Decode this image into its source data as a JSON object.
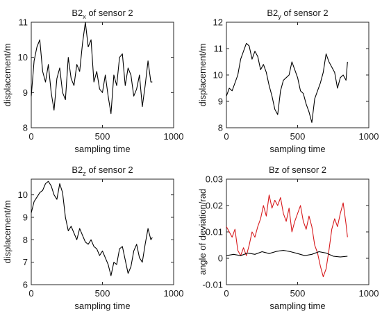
{
  "colors": {
    "black_series": "#000000",
    "red_series": "#d7191c",
    "axes": "#262626"
  },
  "chart_data": [
    {
      "type": "line",
      "title": "B2",
      "title_subscript": "x",
      "title_suffix": " of sensor 2",
      "xlabel": "sampling time",
      "ylabel": "displacement/m",
      "xlim": [
        0,
        1000
      ],
      "ylim": [
        8,
        11
      ],
      "xticks": [
        0,
        500,
        1000
      ],
      "yticks": [
        8,
        9,
        10,
        11
      ],
      "grid": false,
      "series": [
        {
          "color": "#000000",
          "x": [
            0,
            20,
            40,
            60,
            80,
            100,
            120,
            140,
            160,
            180,
            200,
            220,
            240,
            260,
            280,
            300,
            320,
            340,
            360,
            380,
            400,
            420,
            440,
            460,
            480,
            500,
            520,
            540,
            560,
            580,
            600,
            620,
            640,
            660,
            680,
            700,
            720,
            740,
            760,
            780,
            800,
            820,
            840,
            850
          ],
          "y": [
            8.9,
            9.9,
            10.3,
            10.5,
            9.6,
            9.3,
            9.8,
            9.0,
            8.5,
            9.4,
            9.7,
            9.0,
            8.8,
            10.0,
            9.4,
            9.2,
            9.8,
            9.6,
            10.4,
            11.0,
            10.3,
            10.5,
            9.3,
            9.6,
            9.1,
            9.0,
            9.5,
            8.9,
            8.4,
            9.5,
            9.2,
            10.0,
            10.1,
            9.2,
            9.7,
            9.5,
            8.9,
            9.1,
            9.5,
            8.6,
            9.2,
            9.9,
            9.3,
            9.3
          ]
        }
      ]
    },
    {
      "type": "line",
      "title": "B2",
      "title_subscript": "y",
      "title_suffix": " of sensor 2",
      "xlabel": "sampling time",
      "ylabel": "displacement/m",
      "xlim": [
        0,
        1000
      ],
      "ylim": [
        8,
        12
      ],
      "xticks": [
        0,
        500,
        1000
      ],
      "yticks": [
        8,
        9,
        10,
        11,
        12
      ],
      "grid": false,
      "series": [
        {
          "color": "#000000",
          "x": [
            0,
            20,
            40,
            60,
            80,
            100,
            120,
            140,
            160,
            180,
            200,
            220,
            240,
            260,
            280,
            300,
            320,
            340,
            360,
            380,
            400,
            420,
            440,
            460,
            480,
            500,
            520,
            540,
            560,
            580,
            600,
            620,
            640,
            660,
            680,
            700,
            720,
            740,
            760,
            780,
            800,
            820,
            840,
            850
          ],
          "y": [
            9.2,
            9.5,
            9.4,
            9.7,
            10.0,
            10.6,
            10.9,
            11.2,
            11.1,
            10.6,
            10.9,
            10.7,
            10.2,
            10.4,
            10.1,
            9.6,
            9.2,
            8.7,
            8.5,
            9.4,
            9.8,
            9.9,
            10.0,
            10.5,
            10.2,
            9.9,
            9.4,
            9.3,
            8.9,
            8.6,
            8.2,
            9.1,
            9.4,
            9.7,
            10.1,
            10.8,
            10.5,
            10.3,
            10.1,
            9.5,
            9.9,
            10.0,
            9.8,
            10.5
          ]
        }
      ]
    },
    {
      "type": "line",
      "title": "B2",
      "title_subscript": "z",
      "title_suffix": " of sensor 2",
      "xlabel": "sampling time",
      "ylabel": "displacement/m",
      "xlim": [
        0,
        1000
      ],
      "ylim": [
        6,
        10.7
      ],
      "xticks": [
        0,
        500,
        1000
      ],
      "yticks": [
        6,
        7,
        8,
        9,
        10
      ],
      "grid": false,
      "series": [
        {
          "color": "#000000",
          "x": [
            0,
            20,
            40,
            60,
            80,
            100,
            120,
            140,
            160,
            180,
            200,
            220,
            240,
            260,
            280,
            300,
            320,
            340,
            360,
            380,
            400,
            420,
            440,
            460,
            480,
            500,
            520,
            540,
            560,
            580,
            600,
            620,
            640,
            660,
            680,
            700,
            720,
            740,
            760,
            780,
            800,
            820,
            840,
            850
          ],
          "y": [
            9.2,
            9.7,
            9.9,
            10.1,
            10.2,
            10.5,
            10.6,
            10.4,
            10.0,
            9.8,
            10.5,
            10.1,
            9.0,
            8.4,
            8.6,
            8.3,
            8.0,
            8.5,
            8.2,
            7.9,
            7.8,
            8.0,
            7.7,
            7.6,
            7.3,
            7.5,
            7.2,
            6.9,
            6.4,
            7.0,
            6.9,
            7.6,
            7.7,
            7.1,
            6.5,
            6.8,
            7.5,
            7.8,
            7.2,
            7.0,
            7.8,
            8.5,
            8.0,
            8.1
          ]
        }
      ]
    },
    {
      "type": "line",
      "title": "Bz of sensor 2",
      "xlabel": "sampling time",
      "ylabel": "angle of deviation/rad",
      "xlim": [
        0,
        1000
      ],
      "ylim": [
        -0.01,
        0.03
      ],
      "xticks": [
        0,
        500,
        1000
      ],
      "yticks": [
        -0.01,
        0,
        0.01,
        0.02,
        0.03
      ],
      "grid": false,
      "series": [
        {
          "color": "#d7191c",
          "x": [
            0,
            20,
            40,
            60,
            80,
            100,
            120,
            140,
            160,
            180,
            200,
            220,
            240,
            260,
            280,
            300,
            320,
            340,
            360,
            380,
            400,
            420,
            440,
            460,
            480,
            500,
            520,
            540,
            560,
            580,
            600,
            620,
            640,
            660,
            680,
            700,
            720,
            740,
            760,
            780,
            800,
            820,
            840,
            850
          ],
          "y": [
            0.012,
            0.01,
            0.008,
            0.011,
            0.003,
            0.001,
            0.004,
            0.001,
            0.005,
            0.01,
            0.008,
            0.012,
            0.015,
            0.02,
            0.016,
            0.024,
            0.019,
            0.022,
            0.02,
            0.023,
            0.017,
            0.014,
            0.019,
            0.01,
            0.014,
            0.017,
            0.02,
            0.014,
            0.011,
            0.016,
            0.012,
            0.005,
            0.002,
            -0.003,
            -0.007,
            -0.004,
            0.003,
            0.011,
            0.015,
            0.012,
            0.017,
            0.021,
            0.013,
            0.008
          ]
        },
        {
          "color": "#000000",
          "x": [
            0,
            50,
            100,
            150,
            200,
            250,
            300,
            350,
            400,
            450,
            500,
            550,
            600,
            650,
            700,
            750,
            800,
            850
          ],
          "y": [
            0.001,
            0.0015,
            0.001,
            0.002,
            0.0015,
            0.0025,
            0.0018,
            0.0026,
            0.003,
            0.0025,
            0.0018,
            0.001,
            0.0015,
            0.0025,
            0.002,
            0.0008,
            0.0005,
            0.0008
          ]
        }
      ]
    }
  ]
}
